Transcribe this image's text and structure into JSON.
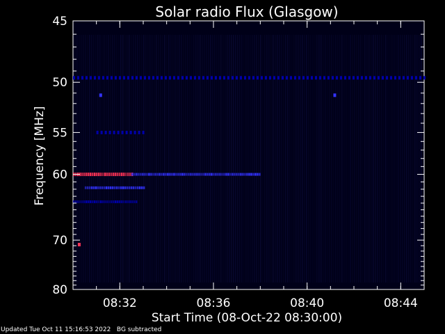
{
  "chart_data": {
    "type": "heatmap",
    "title": "Solar radio Flux (Glasgow)",
    "xlabel": "Start Time (08-Oct-22 08:30:00)",
    "ylabel": "Frequency [MHz]",
    "x_unit": "minutes",
    "xlim": [
      "08:30:00",
      "08:45:00"
    ],
    "ylim": [
      80,
      45
    ],
    "y_scale": "reciprocal",
    "x_ticks": [
      "08:32",
      "08:36",
      "08:40",
      "08:44"
    ],
    "y_ticks": [
      45,
      50,
      55,
      60,
      70,
      80
    ],
    "colors": {
      "background": "#000000",
      "text": "#ffffff",
      "plot_bg": "#000018",
      "low": "#0000aa",
      "mid": "#3333ff",
      "high": "#ff3355"
    },
    "features": [
      {
        "freq_mhz": 49.6,
        "from": "08:30:00",
        "to": "08:45:00",
        "intensity": "low",
        "pattern": "dotted"
      },
      {
        "freq_mhz": 60.0,
        "from": "08:30:00",
        "to": "08:32:30",
        "intensity": "high",
        "pattern": "solid"
      },
      {
        "freq_mhz": 60.0,
        "from": "08:32:30",
        "to": "08:38:00",
        "intensity": "mid",
        "pattern": "solid"
      },
      {
        "freq_mhz": 61.8,
        "from": "08:30:30",
        "to": "08:33:00",
        "intensity": "mid",
        "pattern": "solid"
      },
      {
        "freq_mhz": 63.8,
        "from": "08:30:00",
        "to": "08:32:45",
        "intensity": "low",
        "pattern": "solid"
      },
      {
        "freq_mhz": 51.2,
        "from": "08:31:10",
        "to": "08:31:20",
        "intensity": "mid",
        "pattern": "dot"
      },
      {
        "freq_mhz": 51.2,
        "from": "08:41:10",
        "to": "08:41:20",
        "intensity": "mid",
        "pattern": "dot"
      },
      {
        "freq_mhz": 55.0,
        "from": "08:31:00",
        "to": "08:33:00",
        "intensity": "low",
        "pattern": "dotted"
      },
      {
        "freq_mhz": 70.8,
        "from": "08:30:15",
        "to": "08:30:25",
        "intensity": "high",
        "pattern": "dot"
      }
    ]
  },
  "footer": {
    "updated": "Updated Tue Oct 11 15:16:53 2022",
    "note": "BG subtracted"
  }
}
